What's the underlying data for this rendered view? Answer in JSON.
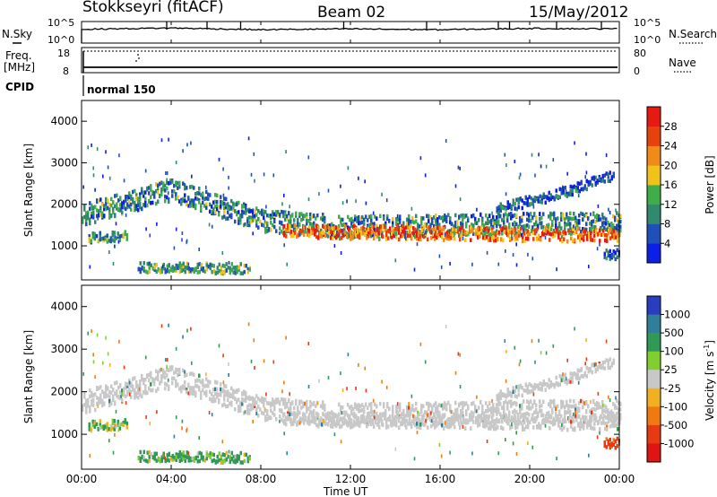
{
  "header": {
    "station": "Stokkseyri (fitACF)",
    "beam": "Beam 02",
    "date": "15/May/2012"
  },
  "top_panels": {
    "nsky_label": "N.Sky",
    "nsearch_label": "N.Search",
    "noise_ticks_left": [
      "10^5",
      "10^0"
    ],
    "noise_ticks_right": [
      "10^5",
      "10^0"
    ],
    "freq_label_1": "Freq.",
    "freq_label_2": "[MHz]",
    "freq_ticks": [
      "18",
      "8"
    ],
    "nave_label": "Nave",
    "nave_ticks": [
      "80",
      "0"
    ],
    "cpid_label": "CPID",
    "cpid_value": "normal 150"
  },
  "panels": {
    "power_ylabel": "Slant Range [km]",
    "velocity_ylabel": "Slant Range [km]",
    "y_ticks": [
      "1000",
      "2000",
      "3000",
      "4000"
    ],
    "x_ticks": [
      "00:00",
      "04:00",
      "08:00",
      "12:00",
      "16:00",
      "20:00",
      "00:00"
    ],
    "xlabel": "Time UT"
  },
  "colorbars": {
    "power": {
      "label": "Power [dB]",
      "ticks": [
        "4",
        "8",
        "12",
        "16",
        "20",
        "24",
        "28"
      ],
      "colors": [
        "#0b1fe6",
        "#1f4fb8",
        "#2f8a6e",
        "#3fae4a",
        "#f2c21a",
        "#f08a18",
        "#e8420c",
        "#e61a10"
      ]
    },
    "velocity": {
      "label": "Velocity [m s",
      "label_sup": "-1",
      "label_end": "]",
      "ticks": [
        "1000",
        "500",
        "100",
        "25",
        "-25",
        "-100",
        "-500",
        "-1000"
      ],
      "colors": [
        "#2a3cc0",
        "#2f7f9a",
        "#2f9a55",
        "#7fd02e",
        "#c8c8c8",
        "#f2b020",
        "#f07a10",
        "#e63a12",
        "#e01410"
      ]
    }
  },
  "chart_data": [
    {
      "type": "line",
      "title": "N.Sky / N.Search",
      "x": [
        "00:00",
        "04:00",
        "08:00",
        "12:00",
        "16:00",
        "20:00",
        "00:00"
      ],
      "series": [
        {
          "name": "N.Sky",
          "values": [
            3.2,
            3.5,
            3.1,
            3.3,
            3.1,
            3.4,
            3.3
          ]
        }
      ],
      "ylim": [
        0,
        5
      ],
      "yscale": "log10"
    },
    {
      "type": "line",
      "title": "Freq / Nave",
      "x": [
        "00:00",
        "04:00",
        "08:00",
        "12:00",
        "16:00",
        "20:00",
        "00:00"
      ],
      "series": [
        {
          "name": "Freq.",
          "values": [
            9.5,
            9.5,
            9.5,
            9.5,
            9.5,
            9.5,
            9.5
          ]
        },
        {
          "name": "Nave",
          "values": [
            76,
            76,
            76,
            76,
            76,
            76,
            76
          ]
        }
      ],
      "ylim": [
        8,
        18
      ]
    },
    {
      "type": "heatmap",
      "title": "Power [dB]",
      "x": [
        "00:00",
        "04:00",
        "08:00",
        "12:00",
        "16:00",
        "20:00",
        "00:00"
      ],
      "ylabel": "Slant Range [km]",
      "xlabel": "Time UT",
      "ylim": [
        180,
        4500
      ],
      "colorbar_range": [
        0,
        30
      ],
      "bands": [
        {
          "t": [
            0.0,
            24.0
          ],
          "range_center_km": [
            1750,
            2350,
            1600,
            1450,
            1500,
            1550
          ],
          "range_time_h": [
            0,
            4,
            8,
            12,
            16,
            24
          ],
          "power_db": 10
        },
        {
          "t": [
            0.3,
            2.0
          ],
          "range_center_km": [
            1200,
            1250
          ],
          "range_time_h": [
            0.3,
            2.0
          ],
          "power_db": 12
        },
        {
          "t": [
            9.0,
            24.0
          ],
          "range_center_km": [
            1350,
            1300,
            1250
          ],
          "range_time_h": [
            9,
            16,
            24
          ],
          "power_db": 20
        },
        {
          "t": [
            2.5,
            7.5
          ],
          "range_center_km": [
            480,
            450
          ],
          "range_time_h": [
            2.5,
            7.5
          ],
          "power_db": 12
        },
        {
          "t": [
            18.5,
            23.7
          ],
          "range_center_km": [
            1900,
            2200,
            2700
          ],
          "range_time_h": [
            18.5,
            21,
            23.7
          ],
          "power_db": 6
        },
        {
          "t": [
            23.3,
            24.0
          ],
          "range_center_km": [
            800,
            800
          ],
          "range_time_h": [
            23.3,
            24.0
          ],
          "power_db": 6
        }
      ]
    },
    {
      "type": "heatmap",
      "title": "Velocity [m s-1]",
      "x": [
        "00:00",
        "04:00",
        "08:00",
        "12:00",
        "16:00",
        "20:00",
        "00:00"
      ],
      "ylabel": "Slant Range [km]",
      "xlabel": "Time UT",
      "ylim": [
        180,
        4500
      ],
      "colorbar_range": [
        -1000,
        1000
      ],
      "bands": [
        {
          "t": [
            0.0,
            24.0
          ],
          "range_center_km": [
            1750,
            2350,
            1600,
            1450,
            1500,
            1550
          ],
          "range_time_h": [
            0,
            4,
            8,
            12,
            16,
            24
          ],
          "velocity_ms": 0
        },
        {
          "t": [
            0.3,
            2.0
          ],
          "range_center_km": [
            1250,
            1300
          ],
          "range_time_h": [
            0.3,
            2.0
          ],
          "velocity_ms": 100
        },
        {
          "t": [
            2.5,
            7.5
          ],
          "range_center_km": [
            480,
            450
          ],
          "range_time_h": [
            2.5,
            7.5
          ],
          "velocity_ms": 500
        },
        {
          "t": [
            23.3,
            24.0
          ],
          "range_center_km": [
            800,
            800
          ],
          "range_time_h": [
            23.3,
            24.0
          ],
          "velocity_ms": -500
        },
        {
          "t": [
            5.4,
            5.7
          ],
          "range_center_km": [
            1300,
            1400
          ],
          "range_time_h": [
            5.4,
            5.7
          ],
          "velocity_ms": 1000
        }
      ]
    }
  ]
}
